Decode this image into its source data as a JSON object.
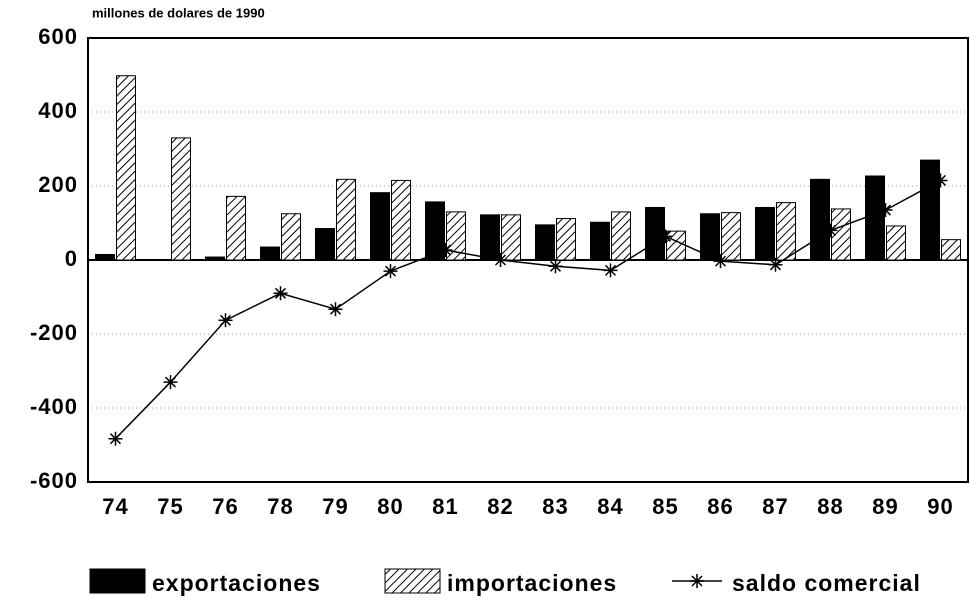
{
  "chart_data": {
    "type": "bar",
    "title": "millones de dolares de 1990",
    "categories": [
      "74",
      "75",
      "76",
      "78",
      "79",
      "80",
      "81",
      "82",
      "83",
      "84",
      "85",
      "86",
      "87",
      "88",
      "89",
      "90"
    ],
    "series": [
      {
        "name": "exportaciones",
        "color": "#000000",
        "pattern": "solid",
        "values": [
          15,
          0,
          8,
          35,
          85,
          182,
          157,
          122,
          95,
          102,
          142,
          125,
          142,
          218,
          227,
          270
        ]
      },
      {
        "name": "importaciones",
        "color": "#000000",
        "pattern": "hatch",
        "values": [
          498,
          330,
          172,
          125,
          218,
          215,
          130,
          122,
          112,
          130,
          78,
          128,
          155,
          138,
          92,
          55
        ]
      },
      {
        "name": "saldo comercial",
        "color": "#000000",
        "type": "line",
        "marker": "star",
        "values": [
          -483,
          -330,
          -163,
          -90,
          -133,
          -30,
          27,
          0,
          -17,
          -28,
          64,
          -3,
          -13,
          80,
          135,
          215
        ]
      }
    ],
    "ylim": [
      -600,
      600
    ],
    "yticks": [
      600,
      400,
      200,
      0,
      -200,
      -400,
      -600
    ],
    "grid": true
  }
}
